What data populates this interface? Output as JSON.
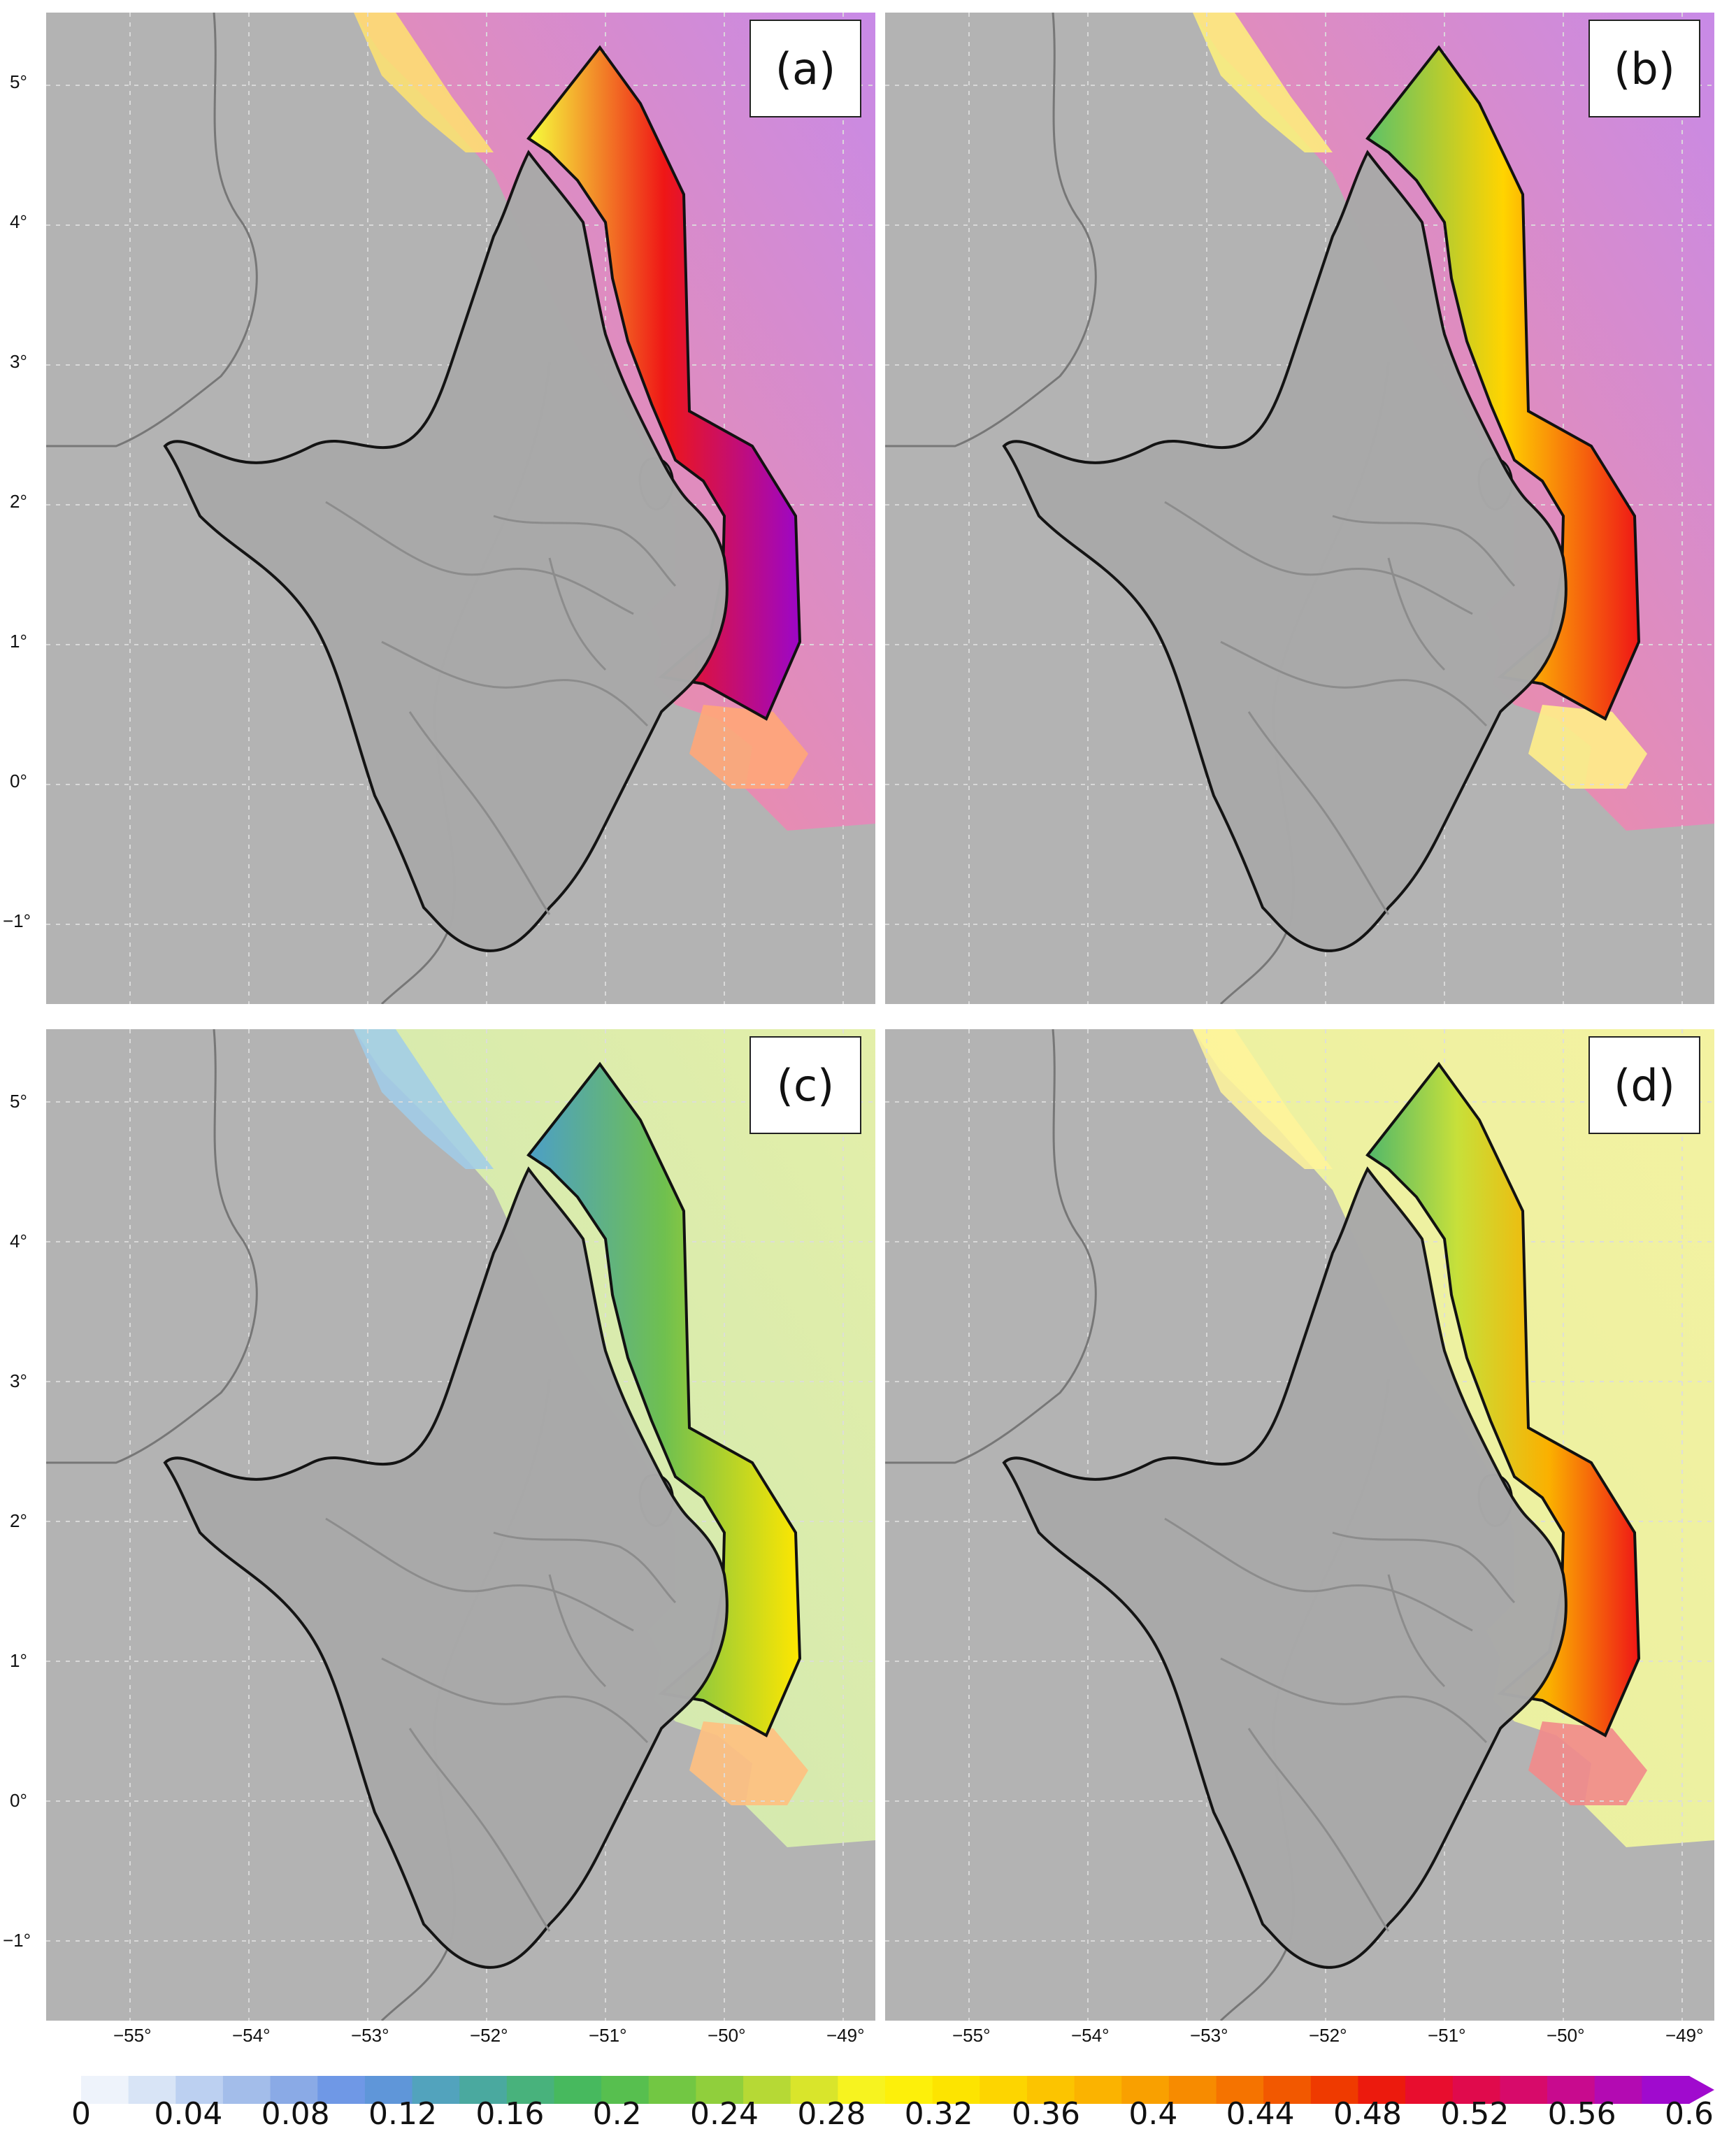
{
  "panels": [
    {
      "label": "(a)",
      "scheme": "a"
    },
    {
      "label": "(b)",
      "scheme": "b"
    },
    {
      "label": "(c)",
      "scheme": "c"
    },
    {
      "label": "(d)",
      "scheme": "d"
    }
  ],
  "y_axis_labels": [
    "5°",
    "4°",
    "3°",
    "2°",
    "1°",
    "0°",
    "−1°"
  ],
  "x_axis_labels": [
    "−55°",
    "−54°",
    "−53°",
    "−52°",
    "−51°",
    "−50°",
    "−49°"
  ],
  "colorbar": {
    "tick_labels": [
      "0",
      "0.04",
      "0.08",
      "0.12",
      "0.16",
      "0.2",
      "0.24",
      "0.28",
      "0.32",
      "0.36",
      "0.4",
      "0.44",
      "0.48",
      "0.52",
      "0.56",
      "0.6"
    ],
    "min": 0,
    "max": 0.6,
    "extend": "max",
    "colors": [
      "#eef3fb",
      "#d8e4f6",
      "#bcd0f1",
      "#a3bdea",
      "#8aaae6",
      "#6f98e6",
      "#5f96d9",
      "#52a3bd",
      "#4aa99f",
      "#48b27c",
      "#47b95e",
      "#57bf4f",
      "#72c743",
      "#90cf3c",
      "#b6d935",
      "#d9e52b",
      "#f7f31f",
      "#fdf00a",
      "#fde400",
      "#fdd500",
      "#fcc400",
      "#fbb300",
      "#f9a000",
      "#f78b00",
      "#f57300",
      "#f25800",
      "#ef3a00",
      "#ec1a0d",
      "#e80d2e",
      "#e00a4c",
      "#d70a6a",
      "#c80a8e",
      "#b30ab2",
      "#a00ace"
    ]
  }
}
